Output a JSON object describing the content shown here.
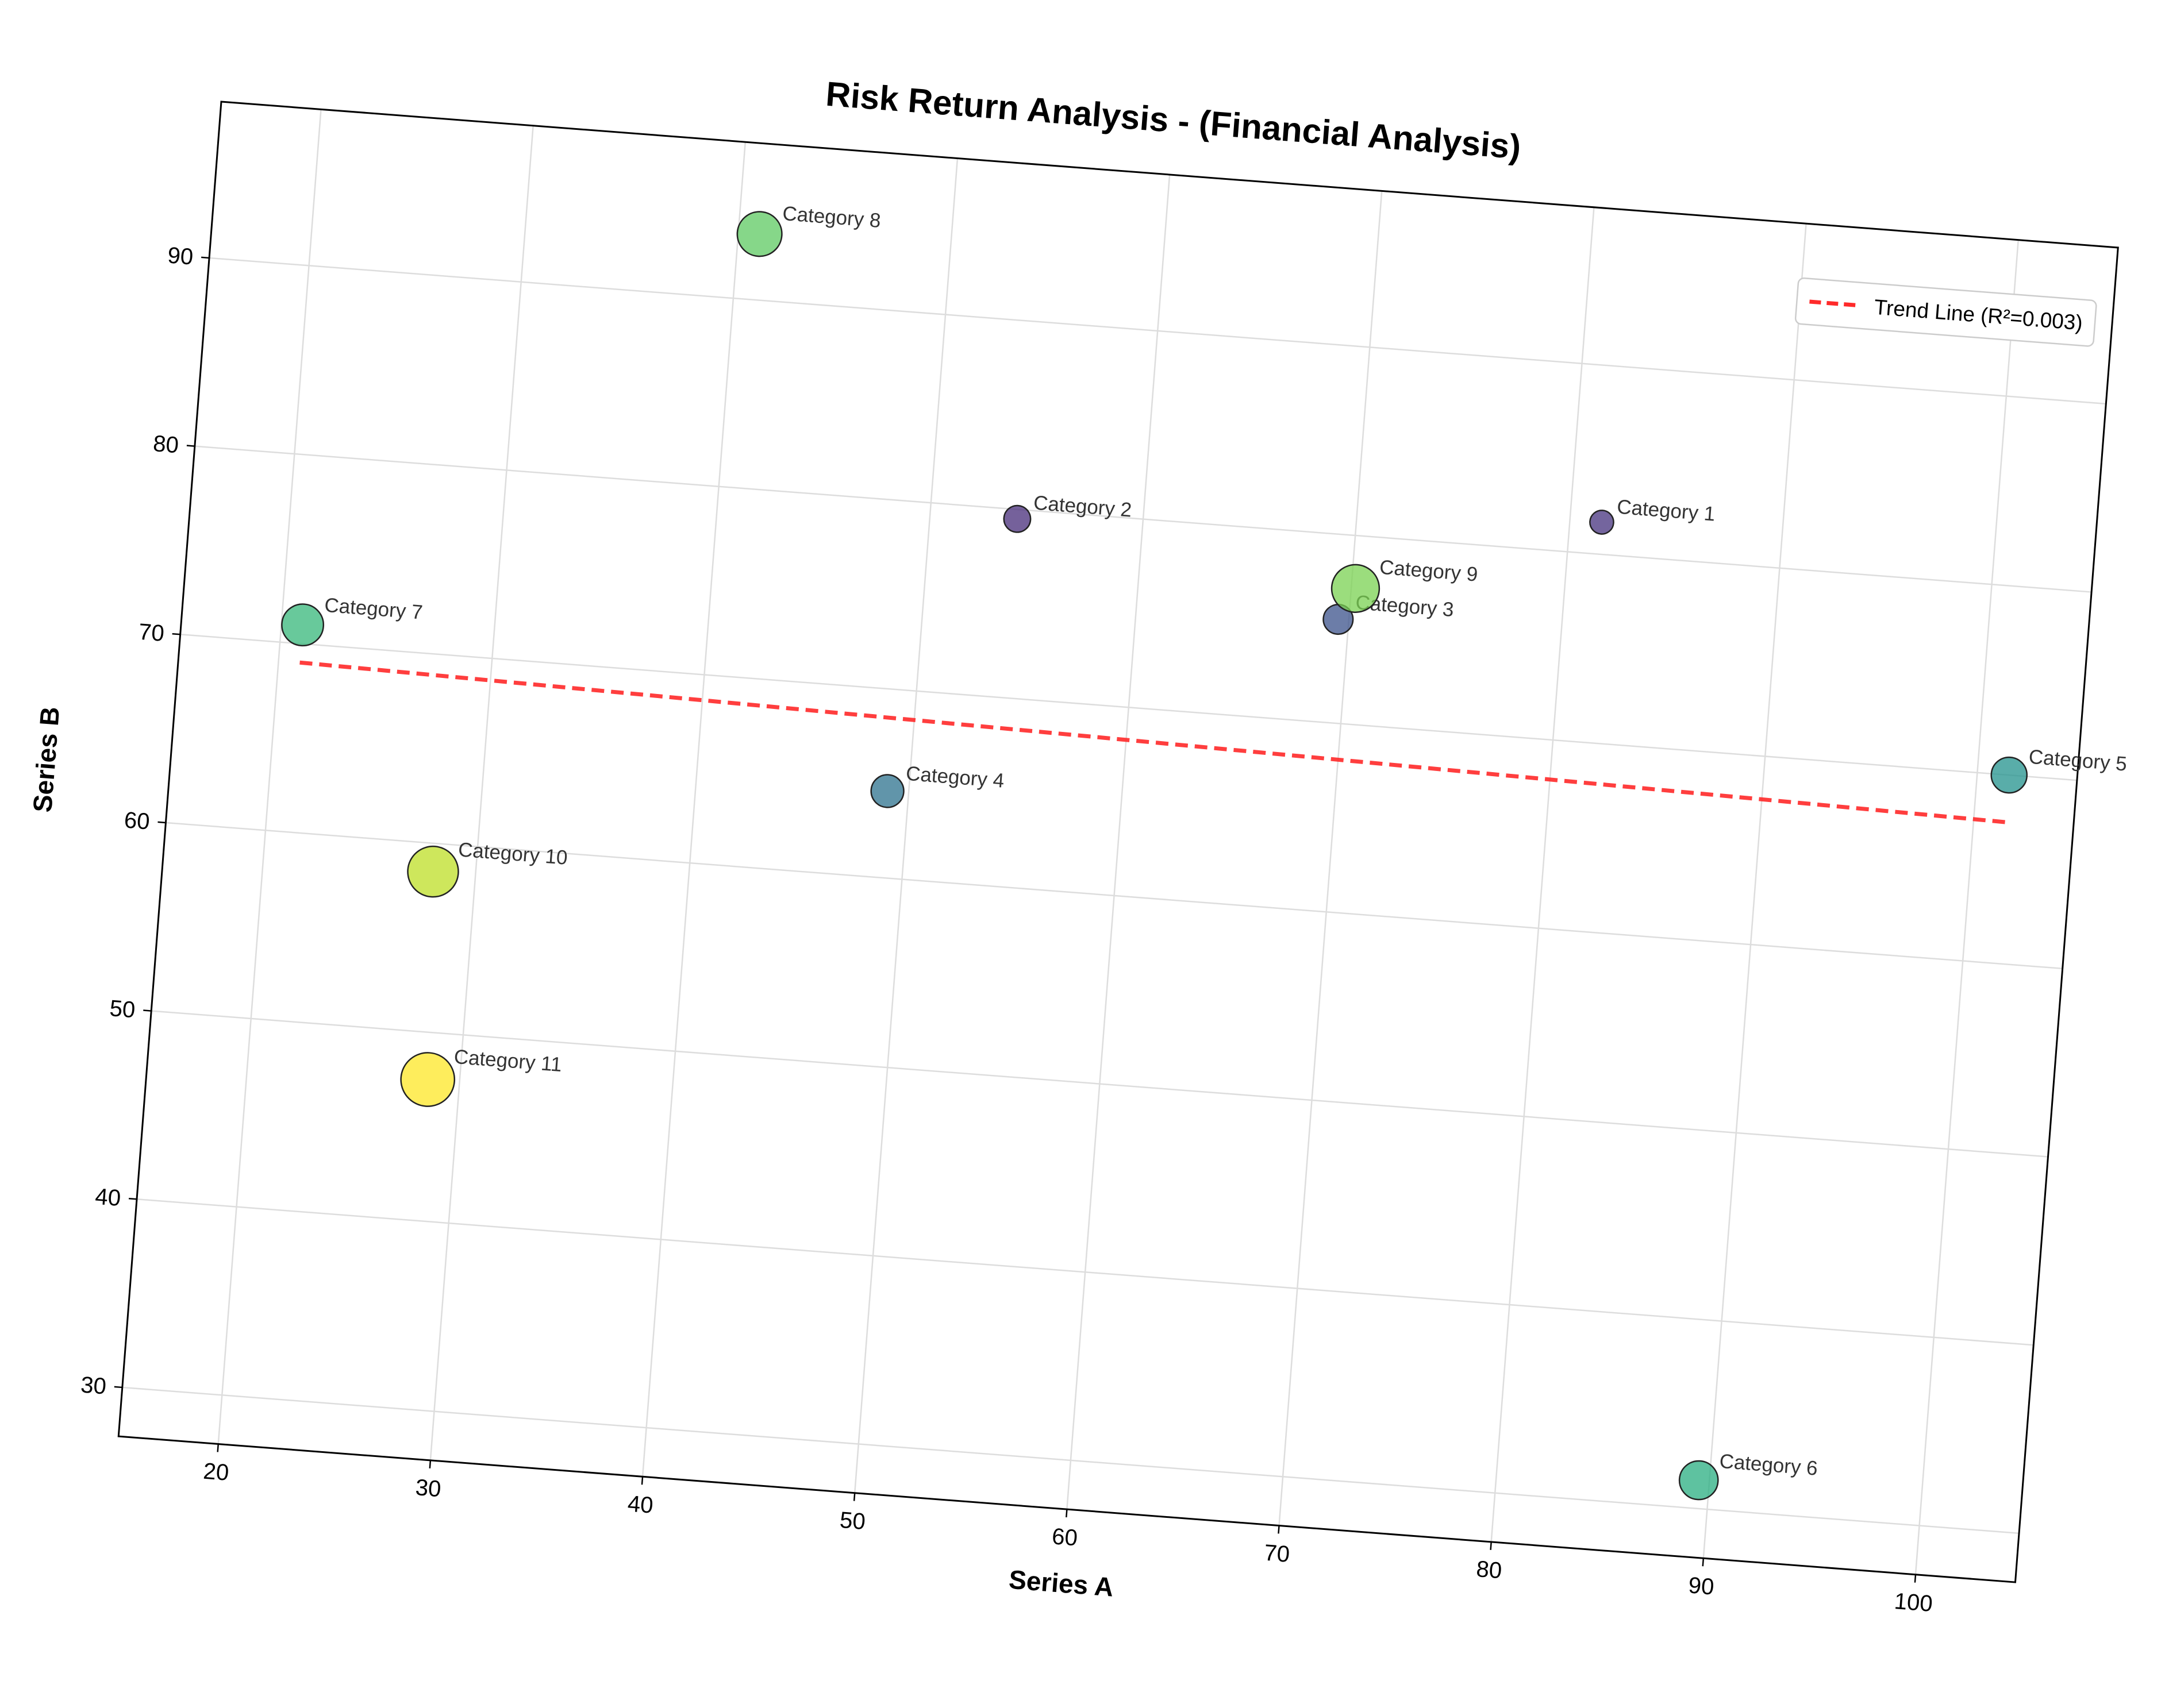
{
  "chart_data": {
    "type": "scatter",
    "title": "Risk Return Analysis - (Financial Analysis)",
    "xlabel": "Series A",
    "ylabel": "Series B",
    "xlim": [
      15.3,
      104.7
    ],
    "ylim": [
      27.4,
      98.3
    ],
    "xticks": [
      20,
      30,
      40,
      50,
      60,
      70,
      80,
      90,
      100
    ],
    "yticks": [
      30,
      40,
      50,
      60,
      70,
      80,
      90
    ],
    "grid": true,
    "legend_position": "upper right",
    "points": [
      {
        "label": "Category 1",
        "x": 81.5,
        "y": 81.7,
        "size": 1,
        "color": "#46327e"
      },
      {
        "label": "Category 2",
        "x": 54.1,
        "y": 79.5,
        "size": 2,
        "color": "#472c7a"
      },
      {
        "label": "Category 3",
        "x": 69.5,
        "y": 75.5,
        "size": 3,
        "color": "#3b528b"
      },
      {
        "label": "Category 4",
        "x": 49.0,
        "y": 64.6,
        "size": 4,
        "color": "#2c728e"
      },
      {
        "label": "Category 5",
        "x": 101.5,
        "y": 70.0,
        "size": 5,
        "color": "#21918c"
      },
      {
        "label": "Category 6",
        "x": 89.5,
        "y": 31.5,
        "size": 6,
        "color": "#28ae80"
      },
      {
        "label": "Category 7",
        "x": 21.0,
        "y": 71.0,
        "size": 7,
        "color": "#35b779"
      },
      {
        "label": "Category 8",
        "x": 41.0,
        "y": 93.5,
        "size": 8,
        "color": "#5ec962"
      },
      {
        "label": "Category 9",
        "x": 70.2,
        "y": 77.2,
        "size": 9,
        "color": "#7ad151"
      },
      {
        "label": "Category 10",
        "x": 28.0,
        "y": 58.5,
        "size": 10,
        "color": "#bddf26"
      },
      {
        "label": "Category 11",
        "x": 28.5,
        "y": 47.5,
        "size": 11,
        "color": "#fde725"
      }
    ],
    "trend_line": {
      "label": "Trend Line (R²=0.003)",
      "color": "#ff2a2a",
      "style": "dashed",
      "x": [
        21.0,
        101.5
      ],
      "y": [
        69.0,
        67.5
      ]
    }
  }
}
